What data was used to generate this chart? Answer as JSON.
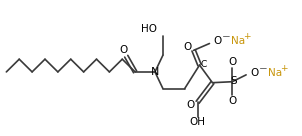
{
  "bg_color": "#ffffff",
  "line_color": "#3a3a3a",
  "text_color": "#000000",
  "na_color": "#c8960c",
  "figsize": [
    3.02,
    1.36
  ],
  "dpi": 100,
  "bond_lw": 1.2,
  "font_size": 7.0,
  "xlim": [
    0,
    302
  ],
  "ylim": [
    0,
    136
  ]
}
